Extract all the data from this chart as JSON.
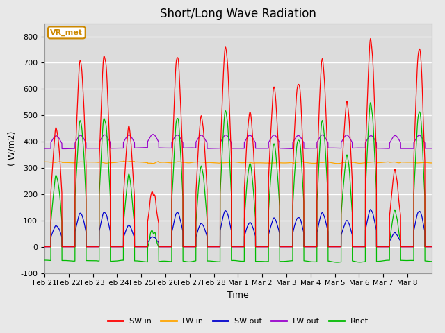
{
  "title": "Short/Long Wave Radiation",
  "xlabel": "Time",
  "ylabel": "( W/m2)",
  "ylim": [
    -100,
    850
  ],
  "yticks": [
    -100,
    0,
    100,
    200,
    300,
    400,
    500,
    600,
    700,
    800
  ],
  "xtick_labels": [
    "Feb 21",
    "Feb 22",
    "Feb 23",
    "Feb 24",
    "Feb 25",
    "Feb 26",
    "Feb 27",
    "Feb 28",
    "Mar 1",
    "Mar 2",
    "Mar 3",
    "Mar 4",
    "Mar 5",
    "Mar 6",
    "Mar 7",
    "Mar 8"
  ],
  "legend_labels": [
    "SW in",
    "LW in",
    "SW out",
    "LW out",
    "Rnet"
  ],
  "colors": {
    "SW_in": "#ff0000",
    "LW_in": "#ffa500",
    "SW_out": "#0000cd",
    "LW_out": "#9900cc",
    "Rnet": "#00bb00"
  },
  "annotation_text": "VR_met",
  "annotation_bg": "#ffffff",
  "annotation_edge": "#cc8800",
  "annotation_fc": "#cc8800",
  "background_color": "#e8e8e8",
  "plot_bg_color": "#dcdcdc",
  "grid_color": "#ffffff",
  "n_points": 4080,
  "n_days": 16,
  "title_fontsize": 12,
  "peaks_SW": [
    450,
    700,
    730,
    425,
    200,
    710,
    480,
    760,
    510,
    600,
    630,
    700,
    550,
    780,
    270,
    750
  ]
}
